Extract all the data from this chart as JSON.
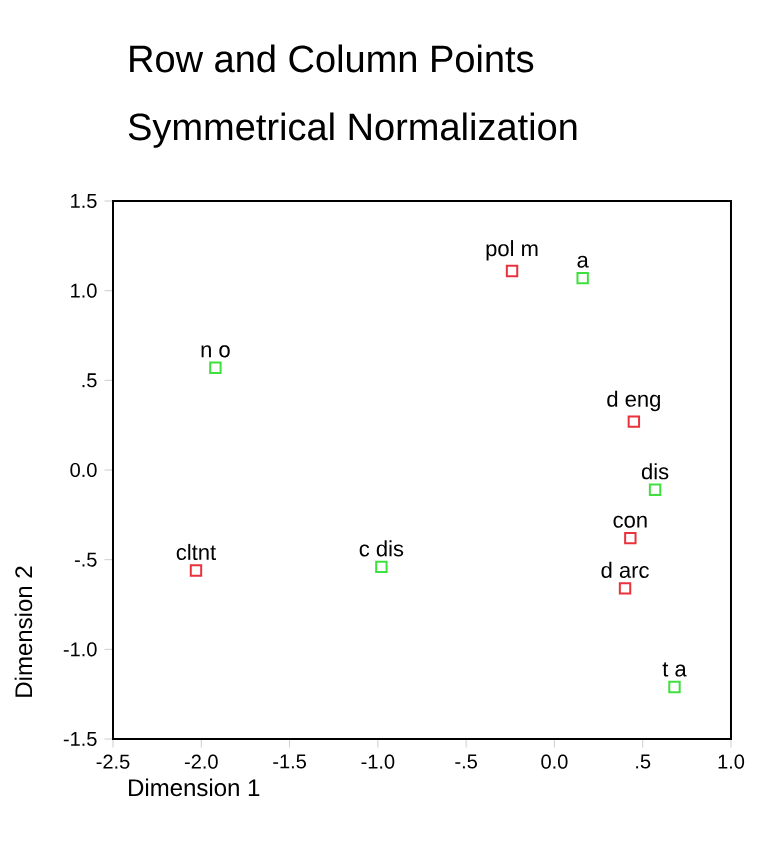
{
  "chart_data": {
    "type": "scatter",
    "title": "Row and Column Points",
    "subtitle": "Symmetrical Normalization",
    "xlabel": "Dimension 1",
    "ylabel": "Dimension 2",
    "marker": "square",
    "grid": false,
    "xlim": [
      -2.5,
      1.0
    ],
    "ylim": [
      -1.5,
      1.5
    ],
    "xticks": [
      {
        "value": -2.5,
        "label": "-2.5"
      },
      {
        "value": -2.0,
        "label": "-2.0"
      },
      {
        "value": -1.5,
        "label": "-1.5"
      },
      {
        "value": -1.0,
        "label": "-1.0"
      },
      {
        "value": -0.5,
        "label": "-.5"
      },
      {
        "value": 0.0,
        "label": "0.0"
      },
      {
        "value": 0.5,
        "label": ".5"
      },
      {
        "value": 1.0,
        "label": "1.0"
      }
    ],
    "yticks": [
      {
        "value": -1.5,
        "label": "-1.5"
      },
      {
        "value": -1.0,
        "label": "-1.0"
      },
      {
        "value": -0.5,
        "label": "-.5"
      },
      {
        "value": 0.0,
        "label": "0.0"
      },
      {
        "value": 0.5,
        "label": ".5"
      },
      {
        "value": 1.0,
        "label": "1.0"
      },
      {
        "value": 1.5,
        "label": "1.5"
      }
    ],
    "series": [
      {
        "color": "#e8323c",
        "x": [
          -2.03,
          -0.24,
          0.45,
          0.43,
          0.4
        ],
        "values": [
          -0.56,
          1.11,
          0.27,
          -0.38,
          -0.66
        ]
      },
      {
        "color": "#3ee03e",
        "x": [
          -1.92,
          -0.98,
          0.16,
          0.57,
          0.68
        ],
        "values": [
          0.57,
          -0.54,
          1.07,
          -0.11,
          -1.21
        ]
      }
    ],
    "annotations": [
      {
        "text": "cltnt",
        "x": -2.03,
        "y": -0.56
      },
      {
        "text": "pol m",
        "x": -0.24,
        "y": 1.11
      },
      {
        "text": "d eng",
        "x": 0.45,
        "y": 0.27
      },
      {
        "text": "con",
        "x": 0.43,
        "y": -0.38
      },
      {
        "text": "d arc",
        "x": 0.4,
        "y": -0.66
      },
      {
        "text": "n o",
        "x": -1.92,
        "y": 0.57
      },
      {
        "text": "c dis",
        "x": -0.98,
        "y": -0.54
      },
      {
        "text": "a",
        "x": 0.16,
        "y": 1.07
      },
      {
        "text": "dis",
        "x": 0.57,
        "y": -0.11
      },
      {
        "text": "t a",
        "x": 0.68,
        "y": -1.21
      }
    ]
  }
}
